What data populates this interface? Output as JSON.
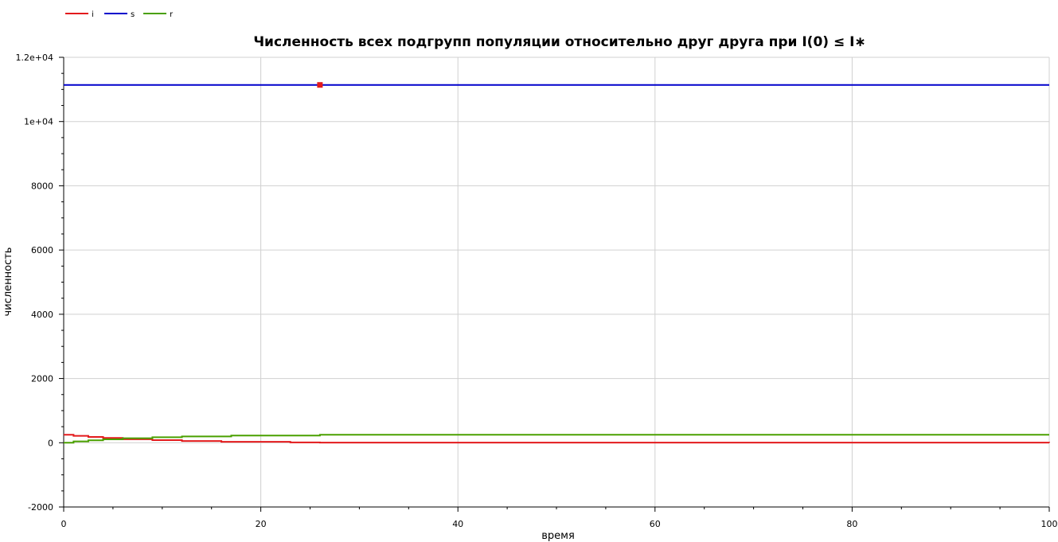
{
  "chart_data": {
    "type": "line",
    "title": "Численность всех подгрупп популяции относительно друг друга при I(0) ≤ I∗",
    "xlabel": "время",
    "ylabel": "численность",
    "xlim": [
      0,
      100
    ],
    "ylim": [
      -2000,
      12000
    ],
    "x_ticks": [
      0,
      20,
      40,
      60,
      80,
      100
    ],
    "x_tick_labels": [
      "0",
      "20",
      "40",
      "60",
      "80",
      "100"
    ],
    "y_ticks": [
      -2000,
      0,
      2000,
      4000,
      6000,
      8000,
      10000,
      12000
    ],
    "y_tick_labels": [
      "-2000",
      "0",
      "2000",
      "4000",
      "6000",
      "8000",
      "1e+04",
      "1.2e+04"
    ],
    "grid": true,
    "legend_position": "top-left",
    "series": [
      {
        "name": "i",
        "color": "#e31a1c",
        "step": true,
        "x": [
          0,
          1,
          2.5,
          4,
          6,
          9,
          12,
          16,
          23,
          26,
          100
        ],
        "y": [
          250,
          215,
          180,
          150,
          110,
          80,
          55,
          30,
          10,
          3,
          0
        ]
      },
      {
        "name": "s",
        "color": "#0000cc",
        "step": false,
        "x": [
          0,
          100
        ],
        "y": [
          11140,
          11140
        ]
      },
      {
        "name": "r",
        "color": "#4aa000",
        "step": true,
        "x": [
          0,
          1,
          2.5,
          4,
          6,
          9,
          12,
          17,
          26,
          100
        ],
        "y": [
          0,
          40,
          75,
          105,
          140,
          170,
          195,
          225,
          250,
          250
        ]
      }
    ],
    "annotations": [
      {
        "type": "marker",
        "x": 26,
        "y": 11140,
        "color": "#e31a1c"
      }
    ]
  }
}
